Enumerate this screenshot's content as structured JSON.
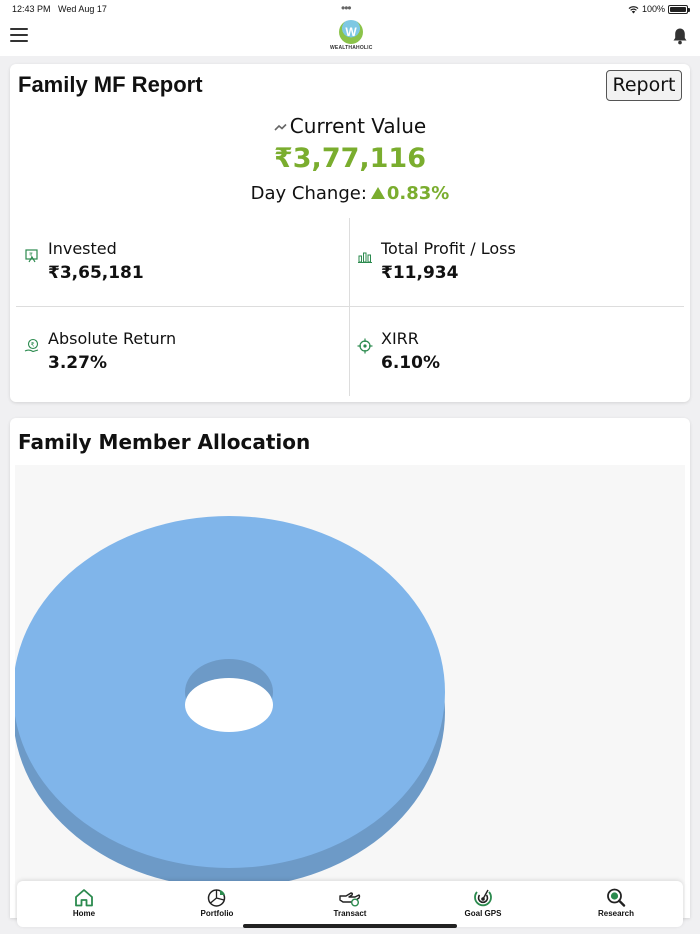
{
  "status_bar": {
    "time": "12:43 PM",
    "date": "Wed Aug 17",
    "battery": "100%"
  },
  "header": {
    "logo_text": "WEALTHAHOLIC",
    "menu_icon": "hamburger-menu-icon",
    "bell_icon": "bell-icon"
  },
  "report": {
    "title": "Family MF Report",
    "report_button": "Report",
    "current_value_label": "Current Value",
    "current_value": "₹3,77,116",
    "day_change_label": "Day Change:",
    "day_change_value": "0.83%",
    "day_change_direction": "up",
    "metrics": [
      {
        "label": "Invested",
        "value": "₹3,65,181",
        "icon": "invested-icon"
      },
      {
        "label": "Total Profit / Loss",
        "value": "₹11,934",
        "icon": "bar-chart-icon"
      },
      {
        "label": "Absolute Return",
        "value": "3.27%",
        "icon": "rupee-hand-icon"
      },
      {
        "label": "XIRR",
        "value": "6.10%",
        "icon": "target-icon"
      }
    ],
    "accent_color": "#7aad2e"
  },
  "allocation": {
    "title": "Family Member Allocation"
  },
  "chart_data": {
    "type": "pie",
    "style": "3d-donut",
    "slices": [
      {
        "value": 100,
        "color": "#80b5ea"
      }
    ]
  },
  "tabs": [
    {
      "label": "Home",
      "icon": "home-icon"
    },
    {
      "label": "Portfolio",
      "icon": "portfolio-pie-icon"
    },
    {
      "label": "Transact",
      "icon": "transact-hand-icon"
    },
    {
      "label": "Goal GPS",
      "icon": "goal-gps-icon"
    },
    {
      "label": "Research",
      "icon": "research-search-icon"
    }
  ]
}
